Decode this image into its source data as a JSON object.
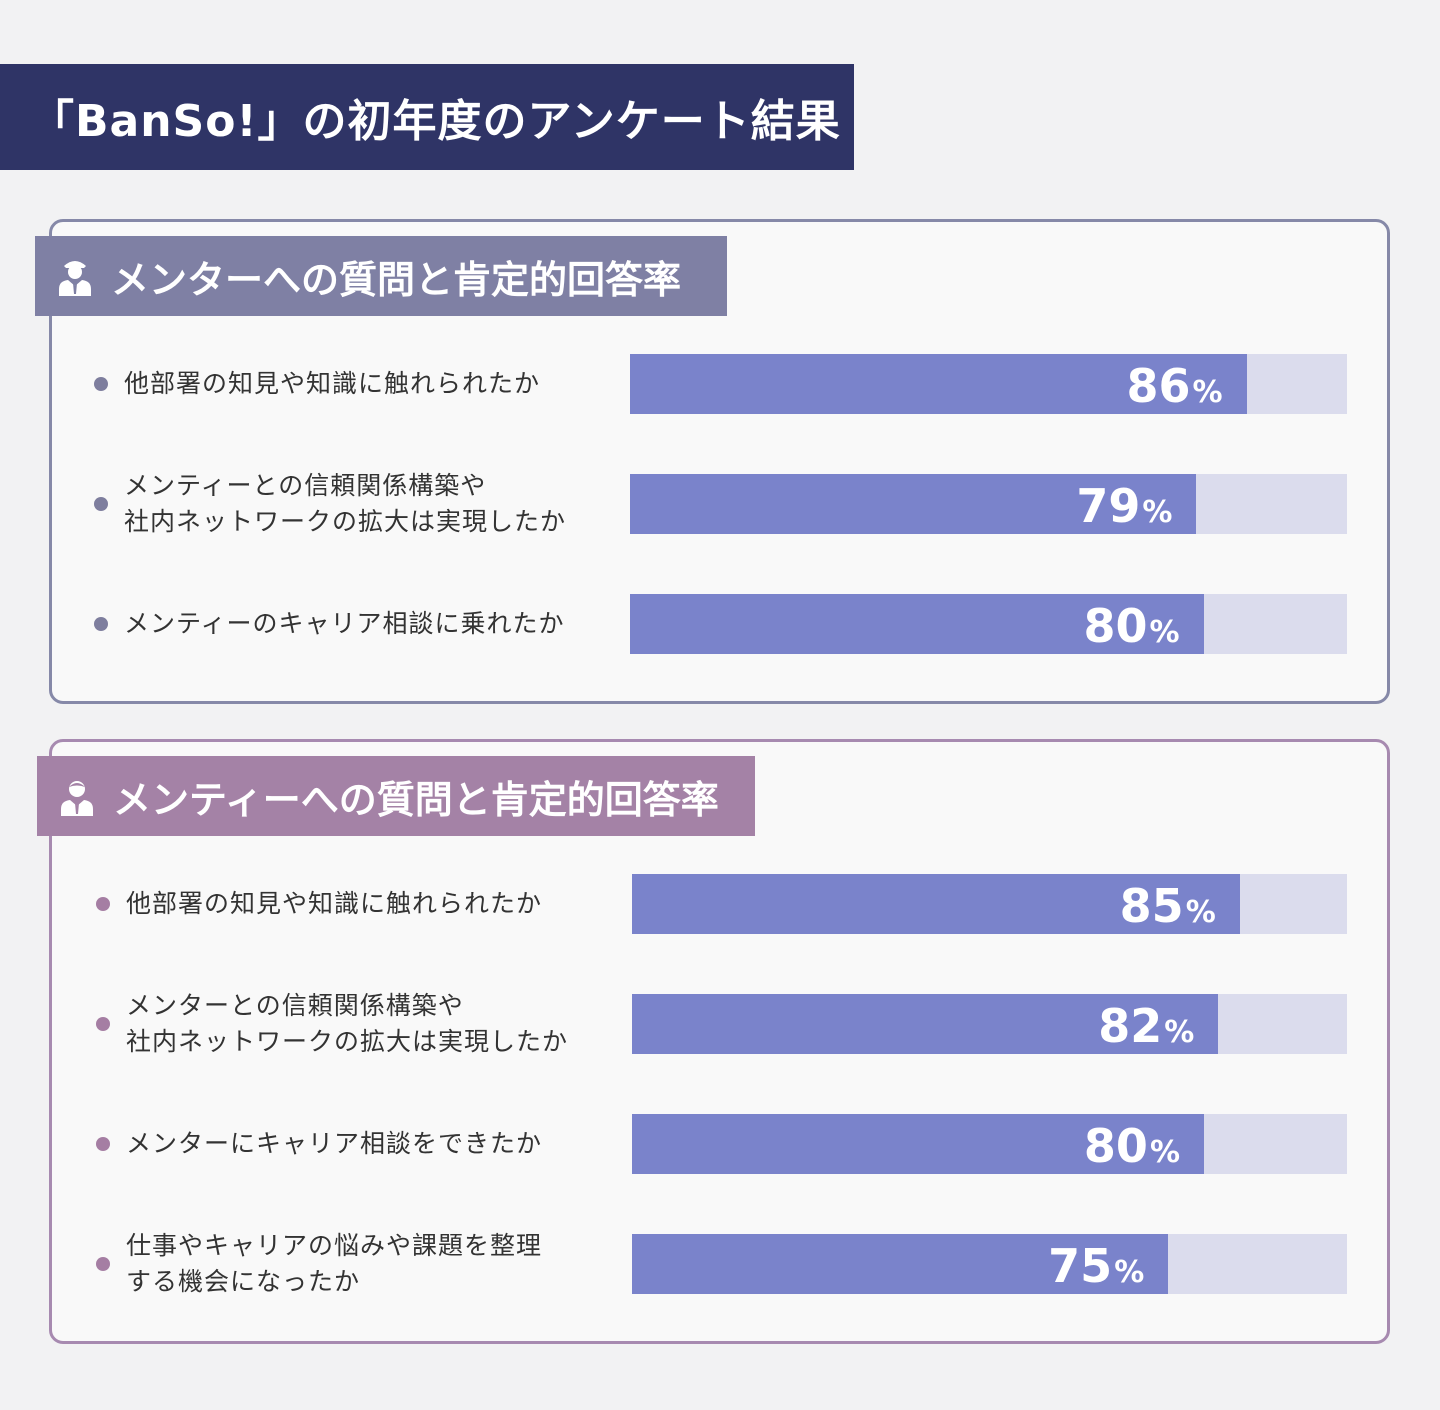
{
  "title": "「BanSo!」の初年度のアンケート結果",
  "colors": {
    "title_bg": "#2f3466",
    "mentor_accent": "#7f80a4",
    "mentee_accent": "#a482a6",
    "bar_fill": "#7a83cb",
    "bar_track": "#dbdced"
  },
  "chart_data": [
    {
      "type": "bar",
      "orientation": "horizontal",
      "title": "メンターへの質問と肯定的回答率",
      "icon": "mentor-person-icon",
      "unit": "%",
      "xlim": [
        0,
        100
      ],
      "categories": [
        [
          "他部署の知見や知識に触れられたか"
        ],
        [
          "メンティーとの信頼関係構築や",
          "社内ネットワークの拡大は実現したか"
        ],
        [
          "メンティーのキャリア相談に乗れたか"
        ]
      ],
      "values": [
        86,
        79,
        80
      ]
    },
    {
      "type": "bar",
      "orientation": "horizontal",
      "title": "メンティーへの質問と肯定的回答率",
      "icon": "mentee-person-icon",
      "unit": "%",
      "xlim": [
        0,
        100
      ],
      "categories": [
        [
          "他部署の知見や知識に触れられたか"
        ],
        [
          "メンターとの信頼関係構築や",
          "社内ネットワークの拡大は実現したか"
        ],
        [
          "メンターにキャリア相談をできたか"
        ],
        [
          "仕事やキャリアの悩みや課題を整理",
          "する機会になったか"
        ]
      ],
      "values": [
        85,
        82,
        80,
        75
      ]
    }
  ]
}
